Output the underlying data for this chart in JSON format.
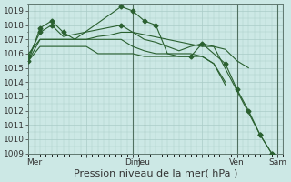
{
  "background_color": "#cce8e5",
  "grid_color": "#aaccc8",
  "line_color": "#2a6030",
  "xlabel": "Pression niveau de la mer( hPa )",
  "ylim": [
    1009,
    1019.5
  ],
  "yticks": [
    1009,
    1010,
    1011,
    1012,
    1013,
    1014,
    1015,
    1016,
    1017,
    1018,
    1019
  ],
  "xlim": [
    0,
    22
  ],
  "x_tick_positions": [
    0.5,
    5,
    9,
    10,
    15,
    18,
    21.5
  ],
  "x_tick_labels": [
    "Mer",
    "",
    "Dim",
    "Jeu",
    "",
    "Ven",
    "Sam"
  ],
  "vline_positions": [
    0.5,
    9,
    10,
    18,
    21.5
  ],
  "series": [
    {
      "x": [
        0,
        1,
        2,
        3,
        4,
        8,
        9,
        10,
        11,
        12,
        13,
        14,
        15,
        16,
        17,
        18,
        19,
        20,
        21
      ],
      "y": [
        1015.5,
        1017.8,
        1018.3,
        1017.5,
        1017.0,
        1019.3,
        1019.0,
        1018.3,
        1018.0,
        1016.0,
        1015.8,
        1015.8,
        1016.7,
        1016.0,
        1015.3,
        1013.5,
        1012.0,
        1010.3,
        1009.0
      ],
      "markers": [
        true,
        true,
        true,
        true,
        false,
        true,
        true,
        true,
        true,
        false,
        false,
        true,
        true,
        false,
        true,
        true,
        true,
        true,
        true
      ]
    },
    {
      "x": [
        0,
        1,
        2,
        3,
        8,
        9,
        15,
        16,
        20,
        21
      ],
      "y": [
        1015.8,
        1017.5,
        1018.0,
        1017.2,
        1018.0,
        1017.5,
        1016.5,
        1016.5,
        1010.3,
        1009.0
      ],
      "markers": [
        true,
        true,
        true,
        false,
        true,
        false,
        false,
        false,
        true,
        true
      ]
    },
    {
      "x": [
        0,
        1,
        2,
        3,
        4,
        5,
        6,
        7,
        8,
        9,
        10,
        11,
        12,
        13,
        14,
        15,
        16,
        17,
        18,
        19
      ],
      "y": [
        1016.0,
        1017.0,
        1017.0,
        1017.0,
        1017.0,
        1017.0,
        1017.2,
        1017.3,
        1017.5,
        1017.5,
        1017.0,
        1016.8,
        1016.5,
        1016.2,
        1016.5,
        1016.7,
        1016.5,
        1016.3,
        1015.5,
        1015.0
      ],
      "markers": [
        false,
        false,
        false,
        false,
        false,
        false,
        false,
        false,
        false,
        false,
        false,
        false,
        false,
        false,
        false,
        false,
        false,
        false,
        false,
        false
      ]
    },
    {
      "x": [
        0,
        1,
        2,
        3,
        4,
        5,
        6,
        7,
        8,
        9,
        10,
        11,
        12,
        13,
        14,
        15,
        16,
        17
      ],
      "y": [
        1015.5,
        1017.0,
        1017.0,
        1017.0,
        1017.0,
        1017.0,
        1017.0,
        1017.0,
        1017.0,
        1016.5,
        1016.2,
        1016.0,
        1016.0,
        1016.0,
        1016.0,
        1015.8,
        1015.3,
        1013.8
      ],
      "markers": [
        false,
        false,
        false,
        false,
        false,
        false,
        false,
        false,
        false,
        false,
        false,
        false,
        false,
        false,
        false,
        false,
        false,
        false
      ]
    },
    {
      "x": [
        0,
        1,
        2,
        3,
        4,
        5,
        6,
        7,
        8,
        9,
        10,
        11,
        12,
        13,
        14,
        15,
        16,
        17
      ],
      "y": [
        1015.5,
        1016.5,
        1016.5,
        1016.5,
        1016.5,
        1016.5,
        1016.0,
        1016.0,
        1016.0,
        1016.0,
        1015.8,
        1015.8,
        1015.8,
        1015.8,
        1015.8,
        1015.8,
        1015.3,
        1014.0
      ],
      "markers": [
        false,
        false,
        false,
        false,
        false,
        false,
        false,
        false,
        false,
        false,
        false,
        false,
        false,
        false,
        false,
        false,
        false,
        false
      ]
    }
  ],
  "font_size": 6.5,
  "xlabel_fontsize": 8
}
